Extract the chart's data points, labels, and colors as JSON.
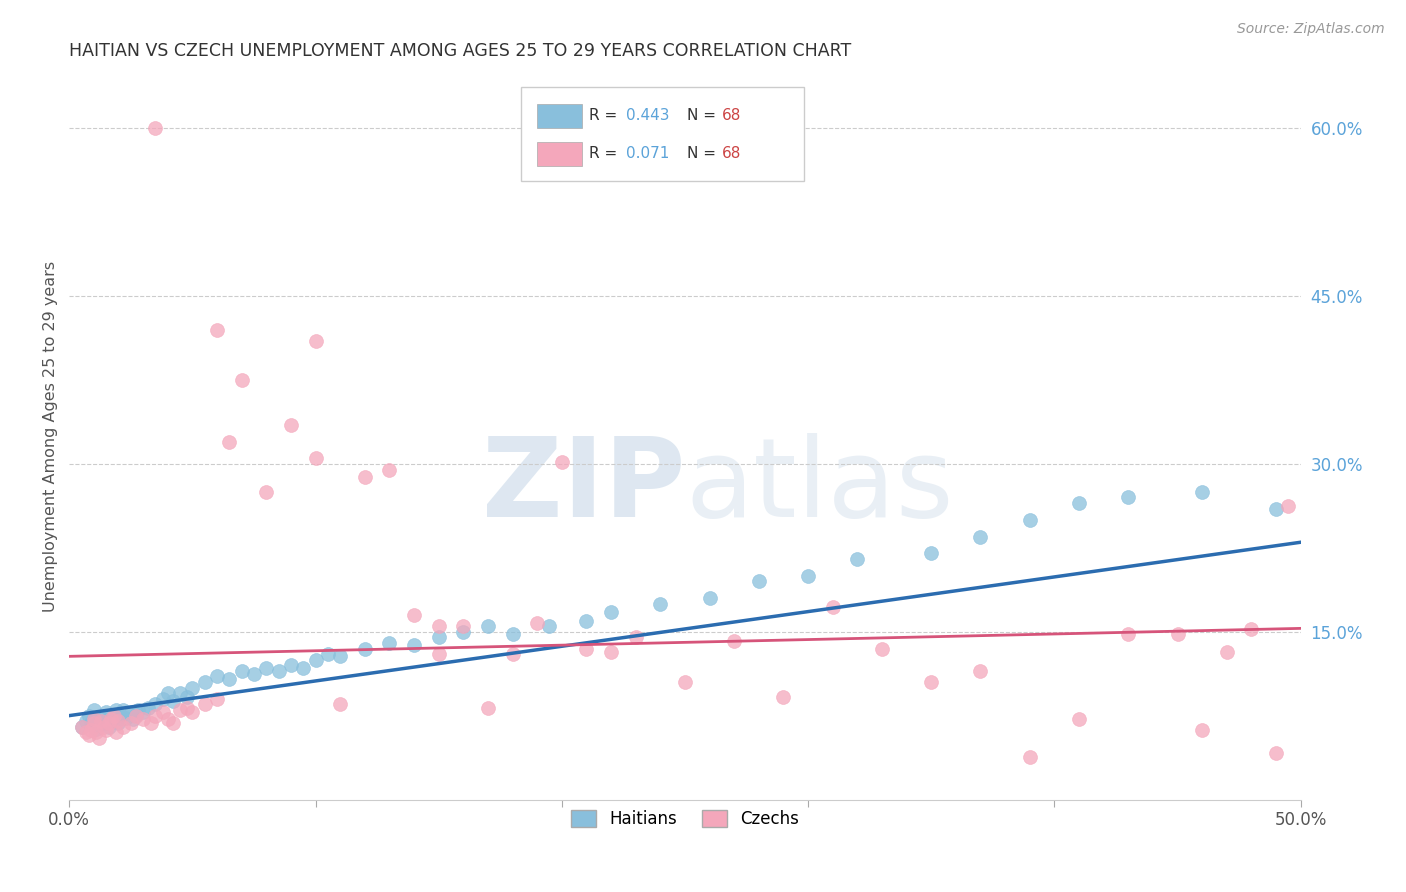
{
  "title": "HAITIAN VS CZECH UNEMPLOYMENT AMONG AGES 25 TO 29 YEARS CORRELATION CHART",
  "source": "Source: ZipAtlas.com",
  "ylabel": "Unemployment Among Ages 25 to 29 years",
  "xlim": [
    0.0,
    0.5
  ],
  "ylim": [
    0.0,
    0.65
  ],
  "xtick_positions": [
    0.0,
    0.1,
    0.2,
    0.3,
    0.4,
    0.5
  ],
  "xticklabels": [
    "0.0%",
    "",
    "",
    "",
    "",
    "50.0%"
  ],
  "ytick_pos": [
    0.0,
    0.15,
    0.3,
    0.45,
    0.6
  ],
  "ytick_labels": [
    "",
    "15.0%",
    "30.0%",
    "45.0%",
    "60.0%"
  ],
  "blue_color": "#89bfdc",
  "pink_color": "#f4a7bb",
  "line_blue": "#2b6cb0",
  "line_pink": "#d6547a",
  "grid_color": "#cccccc",
  "right_label_color": "#5ba3d9",
  "haitians_x": [
    0.005,
    0.007,
    0.008,
    0.009,
    0.01,
    0.01,
    0.011,
    0.012,
    0.013,
    0.014,
    0.015,
    0.015,
    0.016,
    0.017,
    0.018,
    0.019,
    0.02,
    0.02,
    0.021,
    0.022,
    0.023,
    0.025,
    0.026,
    0.027,
    0.028,
    0.03,
    0.032,
    0.035,
    0.038,
    0.04,
    0.042,
    0.045,
    0.048,
    0.05,
    0.055,
    0.06,
    0.065,
    0.07,
    0.075,
    0.08,
    0.085,
    0.09,
    0.095,
    0.1,
    0.105,
    0.11,
    0.12,
    0.13,
    0.14,
    0.15,
    0.16,
    0.17,
    0.18,
    0.195,
    0.21,
    0.22,
    0.24,
    0.26,
    0.28,
    0.3,
    0.32,
    0.35,
    0.37,
    0.39,
    0.41,
    0.43,
    0.46,
    0.49
  ],
  "haitians_y": [
    0.065,
    0.07,
    0.075,
    0.068,
    0.072,
    0.08,
    0.063,
    0.07,
    0.073,
    0.068,
    0.072,
    0.078,
    0.065,
    0.07,
    0.075,
    0.08,
    0.068,
    0.072,
    0.075,
    0.08,
    0.073,
    0.078,
    0.072,
    0.076,
    0.08,
    0.078,
    0.082,
    0.085,
    0.09,
    0.095,
    0.088,
    0.095,
    0.092,
    0.1,
    0.105,
    0.11,
    0.108,
    0.115,
    0.112,
    0.118,
    0.115,
    0.12,
    0.118,
    0.125,
    0.13,
    0.128,
    0.135,
    0.14,
    0.138,
    0.145,
    0.15,
    0.155,
    0.148,
    0.155,
    0.16,
    0.168,
    0.175,
    0.18,
    0.195,
    0.2,
    0.215,
    0.22,
    0.235,
    0.25,
    0.265,
    0.27,
    0.275,
    0.26
  ],
  "czechs_x": [
    0.005,
    0.007,
    0.008,
    0.009,
    0.01,
    0.01,
    0.011,
    0.012,
    0.013,
    0.014,
    0.015,
    0.016,
    0.017,
    0.018,
    0.019,
    0.02,
    0.022,
    0.025,
    0.027,
    0.03,
    0.033,
    0.035,
    0.038,
    0.04,
    0.042,
    0.045,
    0.048,
    0.05,
    0.055,
    0.06,
    0.065,
    0.07,
    0.08,
    0.09,
    0.1,
    0.11,
    0.12,
    0.13,
    0.14,
    0.15,
    0.16,
    0.17,
    0.18,
    0.19,
    0.2,
    0.21,
    0.22,
    0.23,
    0.25,
    0.27,
    0.29,
    0.31,
    0.33,
    0.35,
    0.37,
    0.39,
    0.41,
    0.43,
    0.45,
    0.46,
    0.47,
    0.48,
    0.49,
    0.495,
    0.035,
    0.06,
    0.1,
    0.15
  ],
  "czechs_y": [
    0.065,
    0.06,
    0.058,
    0.062,
    0.068,
    0.072,
    0.06,
    0.055,
    0.07,
    0.065,
    0.062,
    0.068,
    0.072,
    0.075,
    0.06,
    0.07,
    0.065,
    0.068,
    0.075,
    0.072,
    0.068,
    0.075,
    0.078,
    0.072,
    0.068,
    0.08,
    0.082,
    0.078,
    0.085,
    0.09,
    0.32,
    0.375,
    0.275,
    0.335,
    0.305,
    0.085,
    0.288,
    0.295,
    0.165,
    0.13,
    0.155,
    0.082,
    0.13,
    0.158,
    0.302,
    0.135,
    0.132,
    0.145,
    0.105,
    0.142,
    0.092,
    0.172,
    0.135,
    0.105,
    0.115,
    0.038,
    0.072,
    0.148,
    0.148,
    0.062,
    0.132,
    0.152,
    0.042,
    0.262,
    0.6,
    0.42,
    0.41,
    0.155
  ],
  "blue_line_x0": 0.0,
  "blue_line_y0": 0.075,
  "blue_line_x1": 0.5,
  "blue_line_y1": 0.23,
  "pink_line_x0": 0.0,
  "pink_line_y0": 0.128,
  "pink_line_x1": 0.5,
  "pink_line_y1": 0.153
}
